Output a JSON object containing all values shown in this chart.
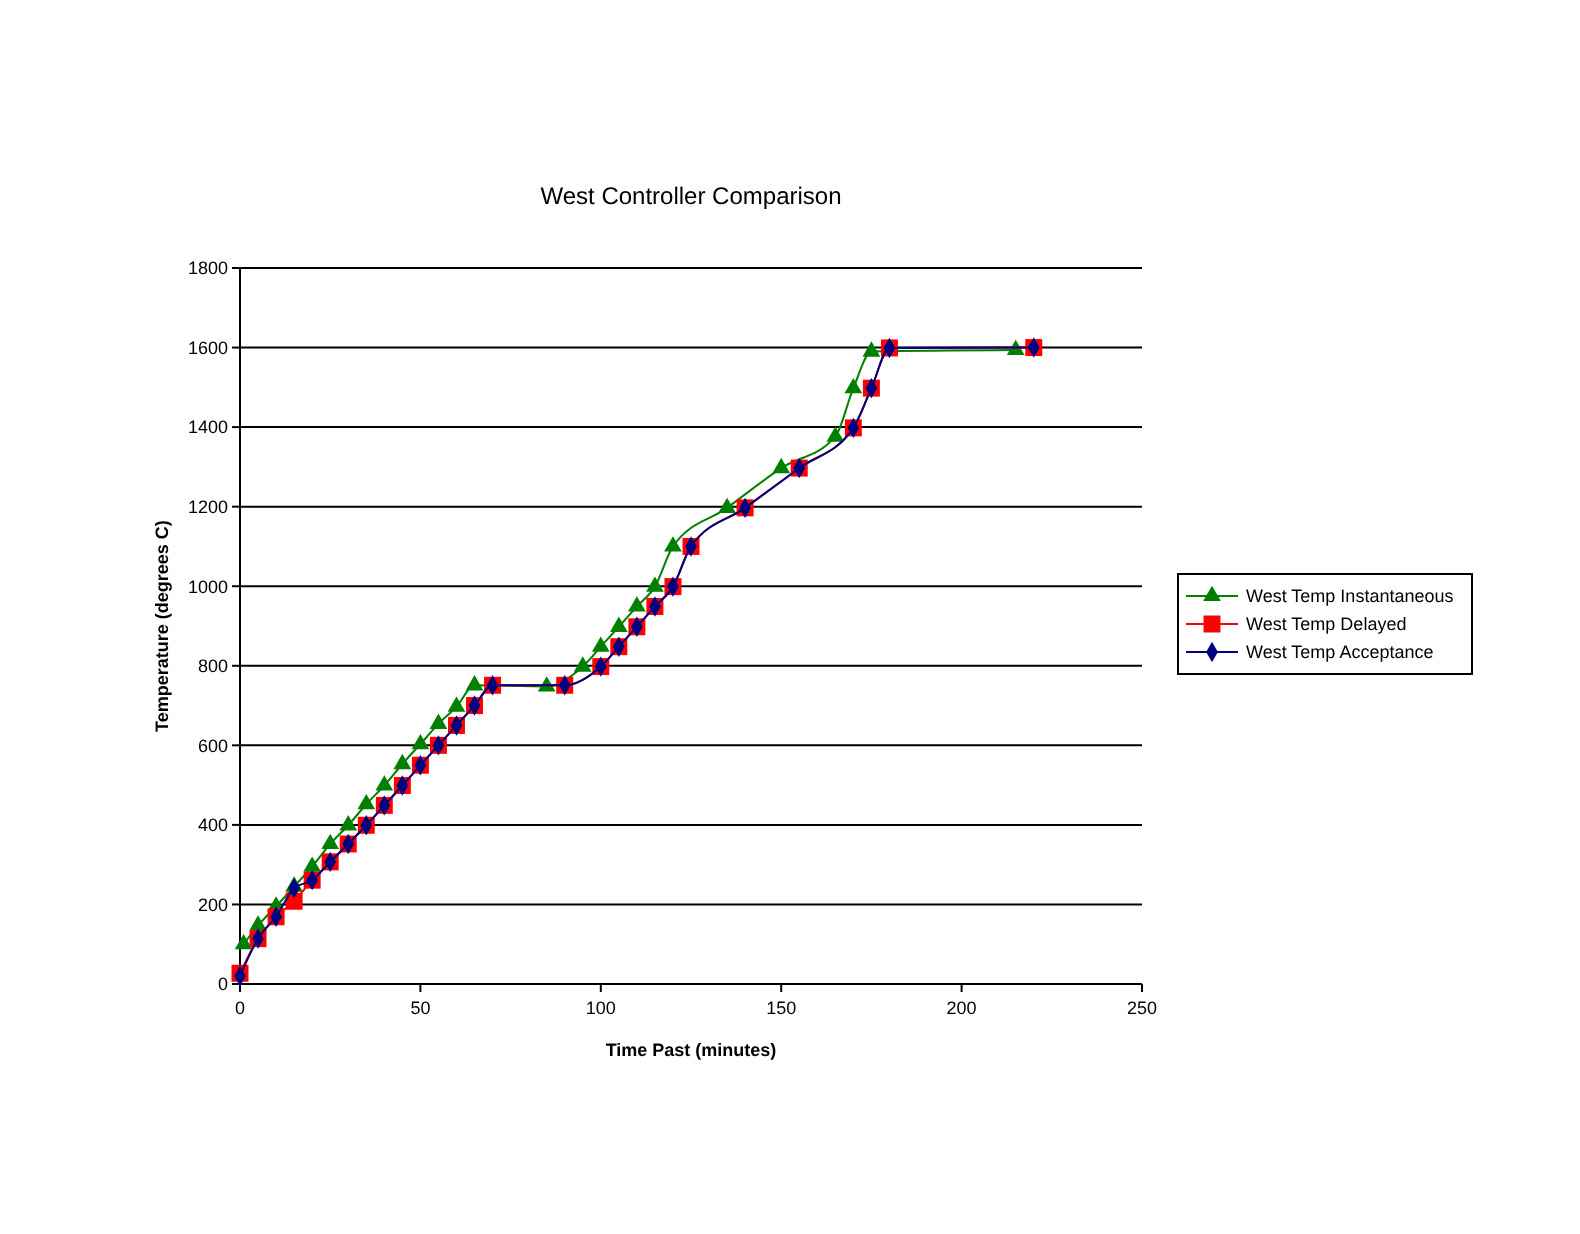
{
  "chart_data": {
    "type": "line",
    "title": "West Controller Comparison",
    "xlabel": "Time Past (minutes)",
    "ylabel": "Temperature (degrees C)",
    "xlim": [
      0,
      250
    ],
    "xticks": [
      0,
      50,
      100,
      150,
      200,
      250
    ],
    "ylim": [
      0,
      1800
    ],
    "yticks": [
      0,
      200,
      400,
      600,
      800,
      1000,
      1200,
      1400,
      1600,
      1800
    ],
    "grid": "y",
    "legend": "right",
    "series": [
      {
        "name": "West Temp Instantaneous",
        "color": "#008000",
        "marker": "triangle",
        "x": [
          1,
          5,
          10,
          15,
          20,
          25,
          30,
          35,
          40,
          45,
          50,
          55,
          60,
          65,
          85,
          95,
          100,
          105,
          110,
          115,
          120,
          135,
          150,
          165,
          170,
          175,
          215
        ],
        "values": [
          100,
          147,
          195,
          245,
          295,
          352,
          399,
          452,
          499,
          553,
          603,
          654,
          697,
          751,
          748,
          798,
          848,
          898,
          949,
          999,
          1100,
          1197,
          1297,
          1376,
          1498,
          1590,
          1594
        ]
      },
      {
        "name": "West Temp Delayed",
        "color": "#ff0000",
        "marker": "square",
        "x": [
          0,
          5,
          10,
          15,
          20,
          25,
          30,
          35,
          40,
          45,
          50,
          55,
          60,
          65,
          70,
          90,
          100,
          105,
          110,
          115,
          120,
          125,
          140,
          155,
          170,
          175,
          180,
          220
        ],
        "values": [
          27,
          114,
          169,
          208,
          261,
          307,
          352,
          399,
          449,
          499,
          550,
          600,
          650,
          700,
          751,
          751,
          798,
          848,
          898,
          949,
          999,
          1100,
          1197,
          1297,
          1398,
          1498,
          1599,
          1600
        ]
      },
      {
        "name": "West Temp Acceptance",
        "color": "#000080",
        "marker": "diamond",
        "x": [
          0,
          5,
          10,
          15,
          20,
          25,
          30,
          35,
          40,
          45,
          50,
          55,
          60,
          65,
          70,
          90,
          100,
          105,
          110,
          115,
          120,
          125,
          140,
          155,
          170,
          175,
          180,
          220
        ],
        "values": [
          20,
          114,
          169,
          241,
          261,
          307,
          352,
          399,
          449,
          499,
          550,
          600,
          650,
          700,
          751,
          751,
          798,
          848,
          898,
          949,
          999,
          1100,
          1197,
          1297,
          1398,
          1498,
          1599,
          1600
        ]
      }
    ]
  }
}
